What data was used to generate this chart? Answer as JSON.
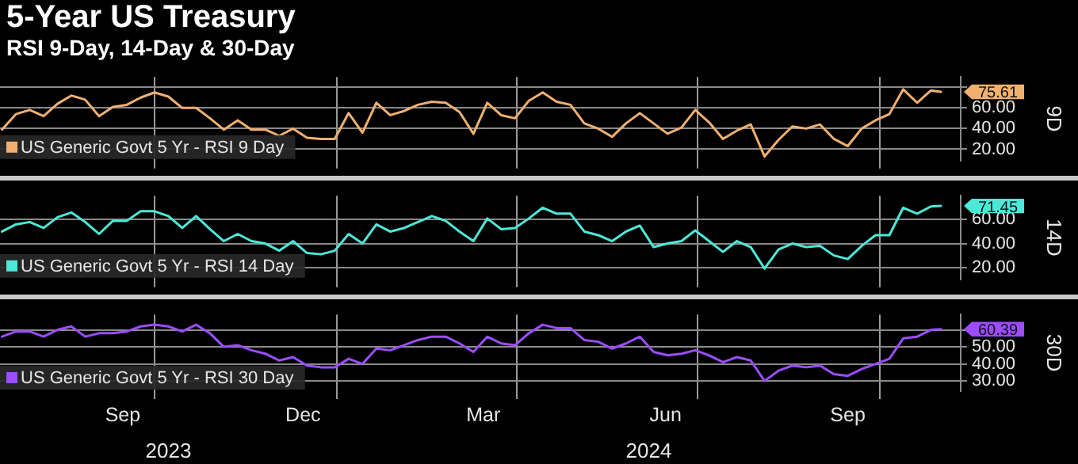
{
  "chart_data": [
    {
      "type": "line",
      "title": "5-Year US Treasury",
      "subtitle": "RSI 9-Day, 14-Day & 30-Day",
      "ylabel": "9D",
      "x": [
        "2023-07-16",
        "2023-07-23",
        "2023-07-30",
        "2023-08-06",
        "2023-08-13",
        "2023-08-20",
        "2023-08-27",
        "2023-09-03",
        "2023-09-10",
        "2023-09-17",
        "2023-09-24",
        "2023-10-01",
        "2023-10-08",
        "2023-10-15",
        "2023-10-22",
        "2023-10-29",
        "2023-11-05",
        "2023-11-12",
        "2023-11-19",
        "2023-11-26",
        "2023-12-03",
        "2023-12-10",
        "2023-12-17",
        "2023-12-24",
        "2023-12-31",
        "2024-01-07",
        "2024-01-14",
        "2024-01-21",
        "2024-01-28",
        "2024-02-04",
        "2024-02-11",
        "2024-02-18",
        "2024-02-25",
        "2024-03-03",
        "2024-03-10",
        "2024-03-17",
        "2024-03-24",
        "2024-03-31",
        "2024-04-07",
        "2024-04-14",
        "2024-04-21",
        "2024-04-28",
        "2024-05-05",
        "2024-05-12",
        "2024-05-19",
        "2024-05-26",
        "2024-06-02",
        "2024-06-09",
        "2024-06-16",
        "2024-06-23",
        "2024-06-30",
        "2024-07-07",
        "2024-07-14",
        "2024-07-21",
        "2024-07-28",
        "2024-08-04",
        "2024-08-11",
        "2024-08-18",
        "2024-08-25",
        "2024-09-01",
        "2024-09-08",
        "2024-09-15",
        "2024-09-22",
        "2024-09-29",
        "2024-10-06",
        "2024-10-13",
        "2024-10-20",
        "2024-10-27",
        "2024-11-01"
      ],
      "series": [
        {
          "name": "US Generic Govt 5 Yr - RSI 9 Day",
          "color": "#f0b070",
          "values": [
            39,
            54,
            58,
            52,
            64,
            72,
            68,
            52,
            61,
            63,
            70,
            75,
            71,
            60,
            60,
            50,
            39,
            48,
            39,
            39,
            33,
            40,
            31,
            30,
            30,
            55,
            36,
            65,
            53,
            57,
            63,
            66,
            65,
            56,
            35,
            65,
            53,
            50,
            67,
            75,
            66,
            63,
            45,
            40,
            32,
            45,
            55,
            45,
            35,
            41,
            58,
            46,
            30,
            38,
            44,
            13,
            29,
            42,
            40,
            44,
            30,
            23,
            40,
            48,
            54,
            78,
            65,
            77,
            75.61
          ]
        }
      ],
      "xlim": [
        "2023-07-15",
        "2024-11-11"
      ],
      "xticks": [
        {
          "value": "2023-10-01",
          "label": null
        },
        {
          "value": "2024-01-01",
          "label": null
        },
        {
          "value": "2024-04-01",
          "label": null
        },
        {
          "value": "2024-07-01",
          "label": null
        },
        {
          "value": "2024-10-01",
          "label": null
        }
      ],
      "ylim": [
        9,
        90
      ],
      "yticks": [
        {
          "value": 20,
          "label": "20.00"
        },
        {
          "value": 40,
          "label": "40.00"
        },
        {
          "value": 60,
          "label": "60.00"
        },
        {
          "value": 80,
          "label": null
        }
      ],
      "annotations": [
        {
          "text": "75.61",
          "x": "2024-11-01",
          "y": 75.61
        }
      ],
      "grid": true,
      "legend": "bottom left",
      "marker": "none",
      "line_style": "solid",
      "tick_labels": "y"
    },
    {
      "type": "line",
      "ylabel": "14D",
      "x": [
        "2023-07-16",
        "2023-07-23",
        "2023-07-30",
        "2023-08-06",
        "2023-08-13",
        "2023-08-20",
        "2023-08-27",
        "2023-09-03",
        "2023-09-10",
        "2023-09-17",
        "2023-09-24",
        "2023-10-01",
        "2023-10-08",
        "2023-10-15",
        "2023-10-22",
        "2023-10-29",
        "2023-11-05",
        "2023-11-12",
        "2023-11-19",
        "2023-11-26",
        "2023-12-03",
        "2023-12-10",
        "2023-12-17",
        "2023-12-24",
        "2023-12-31",
        "2024-01-07",
        "2024-01-14",
        "2024-01-21",
        "2024-01-28",
        "2024-02-04",
        "2024-02-11",
        "2024-02-18",
        "2024-02-25",
        "2024-03-03",
        "2024-03-10",
        "2024-03-17",
        "2024-03-24",
        "2024-03-31",
        "2024-04-07",
        "2024-04-14",
        "2024-04-21",
        "2024-04-28",
        "2024-05-05",
        "2024-05-12",
        "2024-05-19",
        "2024-05-26",
        "2024-06-02",
        "2024-06-09",
        "2024-06-16",
        "2024-06-23",
        "2024-06-30",
        "2024-07-07",
        "2024-07-14",
        "2024-07-21",
        "2024-07-28",
        "2024-08-04",
        "2024-08-11",
        "2024-08-18",
        "2024-08-25",
        "2024-09-01",
        "2024-09-08",
        "2024-09-15",
        "2024-09-22",
        "2024-09-29",
        "2024-10-06",
        "2024-10-13",
        "2024-10-20",
        "2024-10-27",
        "2024-11-01"
      ],
      "series": [
        {
          "name": "US Generic Govt 5 Yr - RSI 14 Day",
          "color": "#4de8d8",
          "values": [
            50,
            56,
            58,
            53,
            62,
            66,
            58,
            48,
            59,
            59,
            67,
            67,
            63,
            53,
            63,
            52,
            42,
            48,
            42,
            40,
            34,
            42,
            32,
            31,
            34,
            48,
            40,
            56,
            50,
            53,
            58,
            63,
            59,
            50,
            42,
            61,
            52,
            53,
            61,
            70,
            65,
            65,
            50,
            47,
            42,
            50,
            55,
            37,
            40,
            42,
            51,
            42,
            33,
            42,
            37,
            19,
            35,
            40,
            37,
            38,
            30,
            27,
            38,
            47,
            47,
            70,
            65,
            71,
            71.45
          ]
        }
      ],
      "xlim": [
        "2023-07-15",
        "2024-11-11"
      ],
      "xticks": [
        {
          "value": "2023-10-01",
          "label": null
        },
        {
          "value": "2024-01-01",
          "label": null
        },
        {
          "value": "2024-04-01",
          "label": null
        },
        {
          "value": "2024-07-01",
          "label": null
        },
        {
          "value": "2024-10-01",
          "label": null
        }
      ],
      "ylim": [
        10,
        80
      ],
      "yticks": [
        {
          "value": 20,
          "label": "20.00"
        },
        {
          "value": 40,
          "label": "40.00"
        },
        {
          "value": 60,
          "label": "60.00"
        }
      ],
      "annotations": [
        {
          "text": "71.45",
          "x": "2024-11-01",
          "y": 71.45
        }
      ],
      "grid": true,
      "legend": "bottom left",
      "marker": "none",
      "line_style": "solid",
      "tick_labels": "y"
    },
    {
      "type": "line",
      "ylabel": "30D",
      "x": [
        "2023-07-16",
        "2023-07-23",
        "2023-07-30",
        "2023-08-06",
        "2023-08-13",
        "2023-08-20",
        "2023-08-27",
        "2023-09-03",
        "2023-09-10",
        "2023-09-17",
        "2023-09-24",
        "2023-10-01",
        "2023-10-08",
        "2023-10-15",
        "2023-10-22",
        "2023-10-29",
        "2023-11-05",
        "2023-11-12",
        "2023-11-19",
        "2023-11-26",
        "2023-12-03",
        "2023-12-10",
        "2023-12-17",
        "2023-12-24",
        "2023-12-31",
        "2024-01-07",
        "2024-01-14",
        "2024-01-21",
        "2024-01-28",
        "2024-02-04",
        "2024-02-11",
        "2024-02-18",
        "2024-02-25",
        "2024-03-03",
        "2024-03-10",
        "2024-03-17",
        "2024-03-24",
        "2024-03-31",
        "2024-04-07",
        "2024-04-14",
        "2024-04-21",
        "2024-04-28",
        "2024-05-05",
        "2024-05-12",
        "2024-05-19",
        "2024-05-26",
        "2024-06-02",
        "2024-06-09",
        "2024-06-16",
        "2024-06-23",
        "2024-06-30",
        "2024-07-07",
        "2024-07-14",
        "2024-07-21",
        "2024-07-28",
        "2024-08-04",
        "2024-08-11",
        "2024-08-18",
        "2024-08-25",
        "2024-09-01",
        "2024-09-08",
        "2024-09-15",
        "2024-09-22",
        "2024-09-29",
        "2024-10-06",
        "2024-10-13",
        "2024-10-20",
        "2024-10-27",
        "2024-11-01"
      ],
      "series": [
        {
          "name": "US Generic Govt 5 Yr - RSI 30 Day",
          "color": "#9b4dff",
          "values": [
            56,
            59,
            59,
            56,
            60,
            62,
            56,
            58,
            58,
            59,
            62,
            63,
            62,
            59,
            63,
            58,
            50,
            51,
            48,
            46,
            42,
            44,
            39,
            38,
            38,
            43,
            40,
            49,
            48,
            51,
            54,
            56,
            56,
            52,
            47,
            56,
            52,
            51,
            58,
            63,
            61,
            61,
            54,
            53,
            49,
            52,
            56,
            47,
            45,
            46,
            48,
            45,
            41,
            44,
            42,
            30,
            36,
            39,
            38,
            39,
            34,
            33,
            37,
            40,
            43,
            55,
            56,
            60,
            60.39
          ]
        }
      ],
      "xlim": [
        "2023-07-15",
        "2024-11-11"
      ],
      "xticks": [
        {
          "value": "2023-09-15",
          "label": "Sep"
        },
        {
          "value": "2023-10-01",
          "label": null
        },
        {
          "value": "2023-12-15",
          "label": "Dec"
        },
        {
          "value": "2024-01-01",
          "label": null
        },
        {
          "value": "2024-03-15",
          "label": "Mar"
        },
        {
          "value": "2024-04-01",
          "label": null
        },
        {
          "value": "2024-06-15",
          "label": "Jun"
        },
        {
          "value": "2024-07-01",
          "label": null
        },
        {
          "value": "2024-09-15",
          "label": "Sep"
        },
        {
          "value": "2024-10-01",
          "label": null
        }
      ],
      "ylim": [
        24,
        69
      ],
      "yticks": [
        {
          "value": 30,
          "label": "30.00"
        },
        {
          "value": 40,
          "label": "40.00"
        },
        {
          "value": 50,
          "label": "50.00"
        },
        {
          "value": 60,
          "label": null
        }
      ],
      "annotations": [
        {
          "text": "60.39",
          "x": "2024-11-01",
          "y": 60.39
        },
        "2023",
        "2024"
      ],
      "grid": true,
      "legend": "bottom left",
      "marker": "none",
      "line_style": "solid"
    }
  ]
}
